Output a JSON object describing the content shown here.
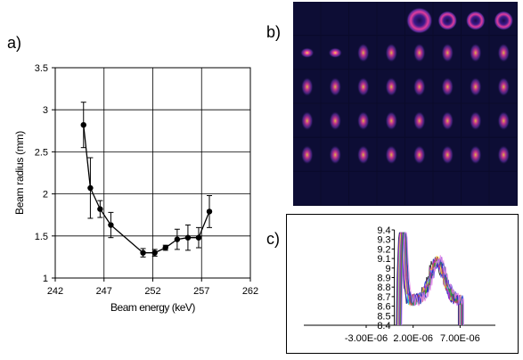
{
  "panel_labels": {
    "a": "a)",
    "b": "b)",
    "c": "c)"
  },
  "chart_data": [
    {
      "type": "scatter",
      "title": "",
      "xlabel": "Beam energy (keV)",
      "ylabel": "Beam radius (mm)",
      "xlim": [
        242,
        262
      ],
      "ylim": [
        1,
        3.5
      ],
      "x_ticks": [
        "242",
        "247",
        "252",
        "257",
        "262"
      ],
      "y_ticks": [
        "1",
        "1.5",
        "2",
        "2.5",
        "3",
        "3.5"
      ],
      "grid": true,
      "series": [
        {
          "marker": "circle",
          "line": true,
          "color": "#000000",
          "points": [
            {
              "x": 244.9,
              "y": 2.82,
              "err": 0.27
            },
            {
              "x": 245.6,
              "y": 2.07,
              "err": 0.36
            },
            {
              "x": 246.6,
              "y": 1.82,
              "err": 0.1
            },
            {
              "x": 247.7,
              "y": 1.63,
              "err": 0.15
            },
            {
              "x": 251.0,
              "y": 1.3,
              "err": 0.05
            },
            {
              "x": 252.2,
              "y": 1.3,
              "err": 0.04
            },
            {
              "x": 253.3,
              "y": 1.36,
              "err": 0.03
            },
            {
              "x": 254.5,
              "y": 1.46,
              "err": 0.12
            },
            {
              "x": 255.6,
              "y": 1.48,
              "err": 0.15
            },
            {
              "x": 256.7,
              "y": 1.48,
              "err": 0.12
            },
            {
              "x": 257.8,
              "y": 1.79,
              "err": 0.19
            }
          ]
        }
      ]
    },
    {
      "type": "line",
      "title": "",
      "xlabel": "",
      "ylabel": "",
      "xlim": [
        -3e-06,
        1e-05
      ],
      "ylim": [
        8.4,
        9.4
      ],
      "x_ticks": [
        "-3.00E-06",
        "2.00E-06",
        "7.00E-06"
      ],
      "y_ticks": [
        "8.4",
        "8.5",
        "8.6",
        "8.7",
        "8.8",
        "8.9",
        "9",
        "9.1",
        "9.2",
        "9.3",
        "9.4"
      ],
      "grid": false,
      "series_colors": [
        "#1a1a1a",
        "#2b2bd6",
        "#d62bd6",
        "#f2e60a",
        "#1ec8e6",
        "#c0307a",
        "#7a2bd6",
        "#a84a4a",
        "#2b9e2b",
        "#1a2bd6",
        "#e68ae6"
      ]
    }
  ],
  "image_grid": {
    "rows": 6,
    "cols": 8,
    "colors": {
      "background": "#0a0a2a",
      "spot_core": "#ffd24a",
      "spot_mid": "#e23c9c",
      "spot_outer": "#5a2a9a"
    }
  }
}
